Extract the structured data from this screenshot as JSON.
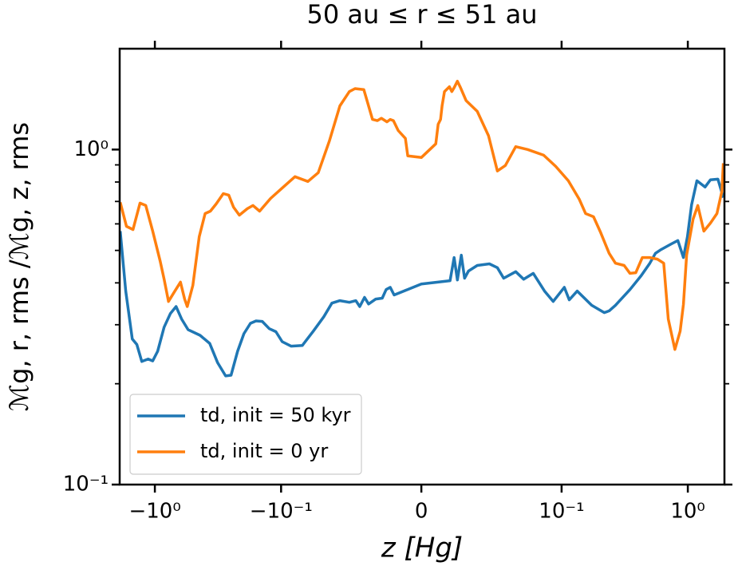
{
  "chart_data": {
    "type": "line",
    "title": "50 au ≤ r ≤ 51 au",
    "xlabel": "z [Hg]",
    "ylabel": "ℳg, r, rms /ℳg, z, rms",
    "xscale": "symlog",
    "linthresh": 0.1,
    "yscale": "log",
    "xlim": [
      -1.9,
      1.95
    ],
    "ylim": [
      0.1,
      2.0
    ],
    "xticks": [
      {
        "value": -1,
        "label": "−10⁰"
      },
      {
        "value": -0.1,
        "label": "−10⁻¹"
      },
      0,
      {
        "value": 0.1,
        "label": "10⁻¹"
      },
      {
        "value": 1,
        "label": "10⁰"
      }
    ],
    "yticks": [
      {
        "value": 0.1,
        "label": "10⁻¹"
      },
      {
        "value": 1,
        "label": "10⁰"
      }
    ],
    "yminor_ticks": [
      0.2,
      0.3,
      0.4,
      0.5,
      0.6,
      0.7,
      0.8,
      0.9
    ],
    "legend": "lower left",
    "series": [
      {
        "name": "td, init = 50 kyr",
        "color": "#1f77b4",
        "x": [
          -1.88,
          -1.7,
          -1.51,
          -1.39,
          -1.27,
          -1.13,
          -1.04,
          -0.95,
          -0.845,
          -0.753,
          -0.679,
          -0.614,
          -0.546,
          -0.439,
          -0.368,
          -0.318,
          -0.275,
          -0.249,
          -0.221,
          -0.197,
          -0.175,
          -0.158,
          -0.141,
          -0.124,
          -0.11,
          -0.0992,
          -0.0929,
          -0.0849,
          -0.077,
          -0.0695,
          -0.0638,
          -0.0581,
          -0.0513,
          -0.0467,
          -0.0439,
          -0.0405,
          -0.0376,
          -0.0325,
          -0.0279,
          -0.0251,
          -0.0222,
          -0.0194,
          -0.0125,
          0,
          0.0205,
          0.0234,
          0.0257,
          0.0285,
          0.0308,
          0.0336,
          0.0399,
          0.0485,
          0.0542,
          0.0587,
          0.0673,
          0.073,
          0.0798,
          0.0878,
          0.094,
          0.105,
          0.115,
          0.133,
          0.173,
          0.218,
          0.238,
          0.267,
          0.348,
          0.427,
          0.5,
          0.554,
          0.614,
          0.741,
          0.834,
          0.923,
          0.993,
          1.07,
          1.18,
          1.37,
          1.51,
          1.73,
          1.91
        ],
        "values": [
          0.571,
          0.378,
          0.272,
          0.262,
          0.233,
          0.237,
          0.234,
          0.25,
          0.295,
          0.324,
          0.34,
          0.312,
          0.29,
          0.279,
          0.264,
          0.231,
          0.211,
          0.212,
          0.25,
          0.282,
          0.303,
          0.308,
          0.307,
          0.292,
          0.286,
          0.267,
          0.259,
          0.26,
          0.287,
          0.317,
          0.348,
          0.354,
          0.35,
          0.354,
          0.34,
          0.362,
          0.346,
          0.358,
          0.36,
          0.382,
          0.388,
          0.368,
          0.378,
          0.397,
          0.406,
          0.476,
          0.408,
          0.484,
          0.413,
          0.434,
          0.451,
          0.456,
          0.444,
          0.413,
          0.432,
          0.41,
          0.427,
          0.378,
          0.352,
          0.388,
          0.356,
          0.378,
          0.343,
          0.326,
          0.33,
          0.343,
          0.382,
          0.42,
          0.458,
          0.49,
          0.503,
          0.523,
          0.535,
          0.476,
          0.549,
          0.684,
          0.807,
          0.773,
          0.812,
          0.816,
          0.719
        ]
      },
      {
        "name": "td, init = 0 yr",
        "color": "#ff7f0e",
        "x": [
          -1.88,
          -1.68,
          -1.49,
          -1.31,
          -1.18,
          -1.04,
          -0.906,
          -0.845,
          -0.78,
          -0.694,
          -0.627,
          -0.581,
          -0.554,
          -0.5,
          -0.445,
          -0.4,
          -0.363,
          -0.327,
          -0.287,
          -0.26,
          -0.238,
          -0.214,
          -0.185,
          -0.167,
          -0.148,
          -0.121,
          -0.0998,
          -0.0901,
          -0.0809,
          -0.0735,
          -0.0656,
          -0.0581,
          -0.0513,
          -0.0473,
          -0.041,
          -0.0348,
          -0.0314,
          -0.0285,
          -0.0245,
          -0.0222,
          -0.0199,
          -0.0165,
          -0.0114,
          -0.0097,
          0,
          0.0103,
          0.012,
          0.0137,
          0.0148,
          0.0165,
          0.02,
          0.0217,
          0.0234,
          0.0257,
          0.0279,
          0.0319,
          0.0399,
          0.0479,
          0.0542,
          0.0599,
          0.0673,
          0.0758,
          0.0872,
          0.0958,
          0.113,
          0.138,
          0.155,
          0.179,
          0.204,
          0.238,
          0.267,
          0.313,
          0.348,
          0.387,
          0.436,
          0.497,
          0.574,
          0.644,
          0.7,
          0.79,
          0.87,
          0.923,
          0.978,
          1.1,
          1.2,
          1.34,
          1.51,
          1.7,
          1.86,
          1.91
        ],
        "values": [
          0.696,
          0.59,
          0.577,
          0.692,
          0.681,
          0.571,
          0.463,
          0.41,
          0.352,
          0.378,
          0.402,
          0.358,
          0.34,
          0.393,
          0.549,
          0.644,
          0.655,
          0.688,
          0.739,
          0.731,
          0.673,
          0.637,
          0.666,
          0.681,
          0.655,
          0.715,
          0.764,
          0.83,
          0.803,
          0.853,
          1.06,
          1.35,
          1.49,
          1.52,
          1.51,
          1.23,
          1.22,
          1.24,
          1.21,
          1.23,
          1.22,
          1.14,
          1.08,
          0.957,
          0.947,
          1.04,
          1.19,
          1.23,
          1.35,
          1.49,
          1.54,
          1.49,
          1.53,
          1.6,
          1.53,
          1.4,
          1.3,
          1.1,
          0.863,
          0.896,
          1.02,
          1.0,
          0.962,
          0.891,
          0.807,
          0.711,
          0.644,
          0.63,
          0.565,
          0.49,
          0.458,
          0.451,
          0.427,
          0.429,
          0.476,
          0.476,
          0.471,
          0.458,
          0.312,
          0.253,
          0.287,
          0.345,
          0.484,
          0.62,
          0.681,
          0.571,
          0.603,
          0.644,
          0.751,
          0.91
        ]
      }
    ]
  }
}
